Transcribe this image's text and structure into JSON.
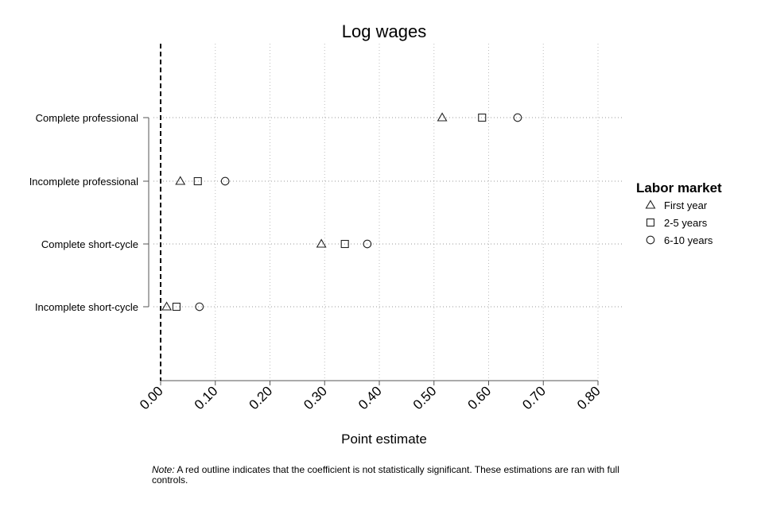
{
  "chart_data": {
    "type": "scatter",
    "title": "Log wages",
    "xlabel": "Point estimate",
    "ylabel": "",
    "xlim": [
      0,
      0.8
    ],
    "x_ticks": [
      "0.00",
      "0.10",
      "0.20",
      "0.30",
      "0.40",
      "0.50",
      "0.60",
      "0.70",
      "0.80"
    ],
    "x_tick_values": [
      0,
      0.1,
      0.2,
      0.3,
      0.4,
      0.5,
      0.6,
      0.7,
      0.8
    ],
    "reference_line_x": 0,
    "categories": [
      "Complete professional",
      "Incomplete professional",
      "Complete short-cycle",
      "Incomplete short-cycle"
    ],
    "series": [
      {
        "name": "First year",
        "marker": "triangle",
        "values": [
          0.515,
          0.036,
          0.294,
          0.011
        ]
      },
      {
        "name": "2-5 years",
        "marker": "square",
        "values": [
          0.588,
          0.068,
          0.337,
          0.029
        ]
      },
      {
        "name": "6-10 years",
        "marker": "circle",
        "values": [
          0.653,
          0.118,
          0.378,
          0.071
        ]
      }
    ],
    "legend": {
      "title": "Labor market",
      "placement": "right"
    },
    "grid": true
  },
  "note": {
    "label": "Note:",
    "text": " A red outline indicates that the coefficient is not statistically significant. These estimations are ran with full controls."
  }
}
